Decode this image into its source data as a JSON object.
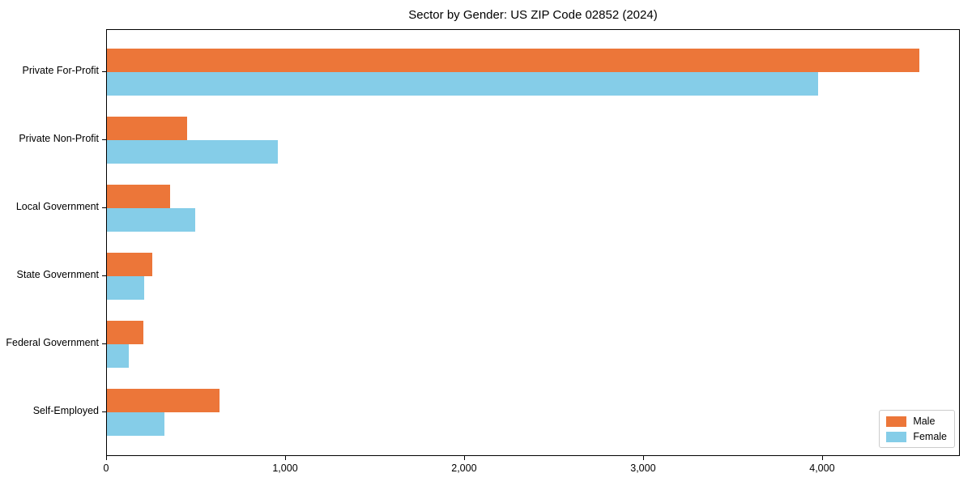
{
  "title": "Sector by Gender: US ZIP Code 02852 (2024)",
  "chart_data": {
    "type": "bar",
    "orientation": "horizontal",
    "title": "Sector by Gender: US ZIP Code 02852 (2024)",
    "categories": [
      "Private For-Profit",
      "Private Non-Profit",
      "Local Government",
      "State Government",
      "Federal Government",
      "Self-Employed"
    ],
    "series": [
      {
        "name": "Male",
        "color": "#EC7639",
        "values": [
          4540,
          450,
          355,
          255,
          205,
          630
        ]
      },
      {
        "name": "Female",
        "color": "#85CDE8",
        "values": [
          3975,
          955,
          495,
          210,
          120,
          320
        ]
      }
    ],
    "xlabel": "",
    "ylabel": "",
    "xlim": [
      0,
      4770
    ],
    "xticks": [
      0,
      1000,
      2000,
      3000,
      4000
    ],
    "xtick_labels": [
      "0",
      "1,000",
      "2,000",
      "3,000",
      "4,000"
    ],
    "grid": false,
    "legend": {
      "position": "lower right",
      "entries": [
        "Male",
        "Female"
      ]
    },
    "colors": {
      "background": "#ffffff",
      "axis": "#000000",
      "legend_border": "#cccccc"
    }
  }
}
